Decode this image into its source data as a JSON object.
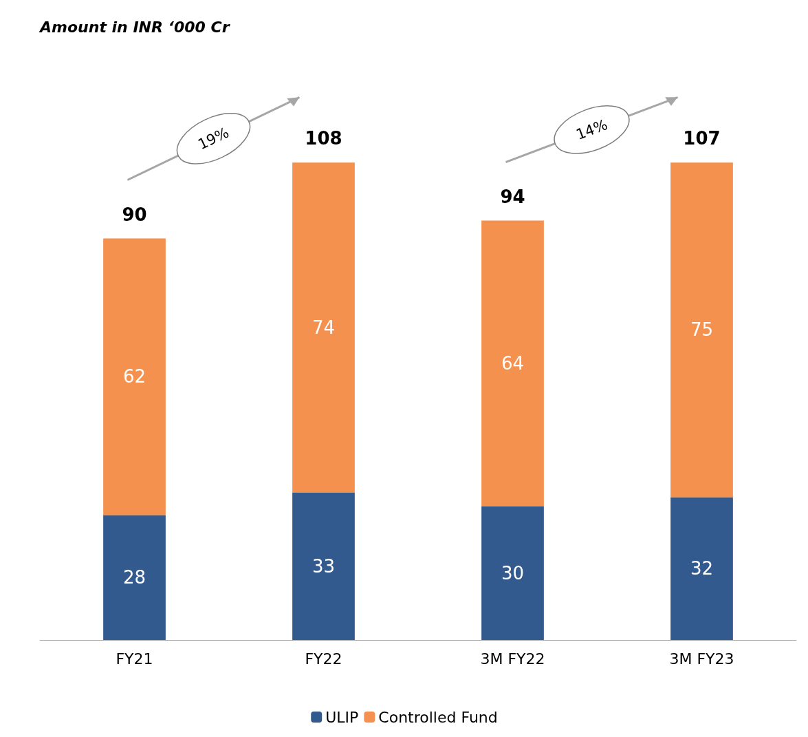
{
  "chart_data": {
    "type": "bar",
    "subtitle": "Amount in INR ‘000 Cr",
    "categories": [
      "FY21",
      "FY22",
      "3M FY22",
      "3M FY23"
    ],
    "stacked": true,
    "series": [
      {
        "name": "ULIP",
        "color": "#335a8e",
        "values": [
          28,
          33,
          30,
          32
        ]
      },
      {
        "name": "Controlled Fund",
        "color": "#f5914f",
        "values": [
          62,
          74,
          64,
          75
        ]
      }
    ],
    "totals": [
      "90",
      "108",
      "94",
      "107"
    ],
    "data_labels": true,
    "annotations": [
      "19%",
      "14%"
    ],
    "legend": "bottom",
    "tick_labels": "x"
  }
}
